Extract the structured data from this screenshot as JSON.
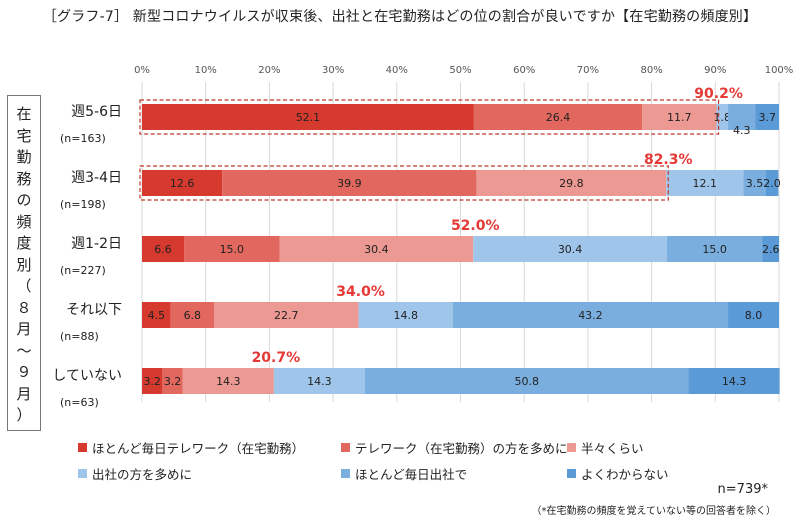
{
  "title": "［グラフ-7］ 新型コロナウイルスが収束後、出社と在宅勤務はどの位の割合が良いですか【在宅勤務の頻度別】",
  "side_label": [
    "在",
    "宅",
    "勤",
    "務",
    "の",
    "頻",
    "度",
    "別",
    "（",
    "８",
    "月",
    "～",
    "９",
    "月",
    "）"
  ],
  "legend": [
    {
      "label": "ほとんど毎日テレワーク（在宅勤務）",
      "color": "#d63a2e"
    },
    {
      "label": "テレワーク（在宅勤務）の方を多めに",
      "color": "#e2675e"
    },
    {
      "label": "半々くらい",
      "color": "#ed9993"
    },
    {
      "label": "出社の方を多めに",
      "color": "#9fc6ea"
    },
    {
      "label": "ほとんど毎日出社で",
      "color": "#7aaedf"
    },
    {
      "label": "よくわからない",
      "color": "#5a9ad6"
    }
  ],
  "n_total": "n=739*",
  "footnote": "（*在宅勤務の頻度を覚えていない等の回答者を除く）",
  "chart_data": {
    "type": "bar",
    "orientation": "horizontal",
    "stacked": true,
    "xlim": [
      0,
      100
    ],
    "x_ticks": [
      "0%",
      "10%",
      "20%",
      "30%",
      "40%",
      "50%",
      "60%",
      "70%",
      "80%",
      "90%",
      "100%"
    ],
    "grid": true,
    "categories": [
      "週5-6日",
      "週3-4日",
      "週1-2日",
      "それ以下",
      "していない"
    ],
    "n_labels": [
      "(n=163)",
      "(n=198)",
      "(n=227)",
      "(n=88)",
      "(n=63)"
    ],
    "series": [
      {
        "name": "ほとんど毎日テレワーク（在宅勤務）",
        "values": [
          52.1,
          12.6,
          6.6,
          4.5,
          3.2
        ]
      },
      {
        "name": "テレワーク（在宅勤務）の方を多めに",
        "values": [
          26.4,
          39.9,
          15.0,
          6.8,
          3.2
        ]
      },
      {
        "name": "半々くらい",
        "values": [
          11.7,
          29.8,
          30.4,
          22.7,
          14.3
        ]
      },
      {
        "name": "出社の方を多めに",
        "values": [
          1.8,
          12.1,
          30.4,
          14.8,
          14.3
        ]
      },
      {
        "name": "ほとんど毎日出社で",
        "values": [
          4.3,
          3.5,
          15.0,
          43.2,
          50.8
        ]
      },
      {
        "name": "よくわからない",
        "values": [
          3.7,
          2.0,
          2.6,
          8.0,
          14.3
        ]
      }
    ],
    "value_labels": [
      [
        "52.1",
        "26.4",
        "11.7",
        "1.8",
        "4.3",
        "3.7"
      ],
      [
        "12.6",
        "39.9",
        "29.8",
        "12.1",
        "3.5",
        "2.0"
      ],
      [
        "6.6",
        "15.0",
        "30.4",
        "30.4",
        "15.0",
        "2.6"
      ],
      [
        "4.5",
        "6.8",
        "22.7",
        "14.8",
        "43.2",
        "8.0"
      ],
      [
        "3.2",
        "3.2",
        "14.3",
        "14.3",
        "50.8",
        "14.3"
      ]
    ],
    "cumulative_labels": [
      "90.2%",
      "82.3%",
      "52.0%",
      "34.0%",
      "20.7%"
    ],
    "highlighted_rows": [
      0,
      1
    ]
  }
}
